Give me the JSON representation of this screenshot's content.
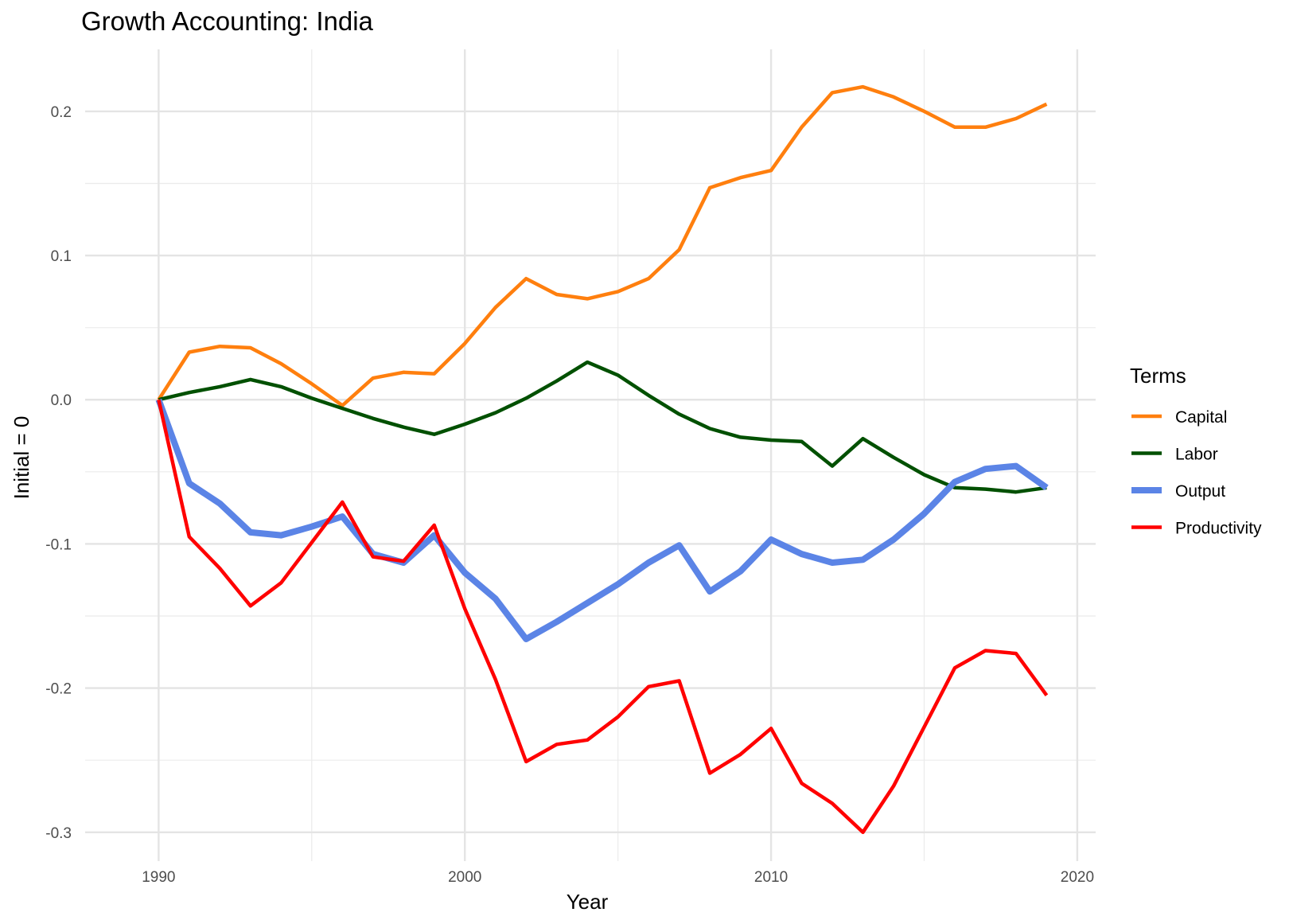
{
  "chart_data": {
    "type": "line",
    "title": "Growth Accounting: India",
    "xlabel": "Year",
    "ylabel": "Initial = 0",
    "xlim": [
      1987.6,
      2020.6
    ],
    "ylim": [
      -0.32,
      0.243
    ],
    "x_ticks": [
      1990,
      2000,
      2010,
      2020
    ],
    "x_tick_labels": [
      "1990",
      "2000",
      "2010",
      "2020"
    ],
    "x_minor_ticks": [
      1995,
      2005,
      2015
    ],
    "y_ticks": [
      -0.3,
      -0.2,
      -0.1,
      0.0,
      0.1,
      0.2
    ],
    "y_tick_labels": [
      "-0.3",
      "-0.2",
      "-0.1",
      "0.0",
      "0.1",
      "0.2"
    ],
    "y_minor_ticks": [
      -0.25,
      -0.15,
      -0.05,
      0.05,
      0.15
    ],
    "grid": true,
    "legend": {
      "title": "Terms",
      "position": "right"
    },
    "x": [
      1990,
      1991,
      1992,
      1993,
      1994,
      1995,
      1996,
      1997,
      1998,
      1999,
      2000,
      2001,
      2002,
      2003,
      2004,
      2005,
      2006,
      2007,
      2008,
      2009,
      2010,
      2011,
      2012,
      2013,
      2014,
      2015,
      2016,
      2017,
      2018,
      2019
    ],
    "series": [
      {
        "name": "Capital",
        "color": "#ff7f0e",
        "width": 4.5,
        "values": [
          0.0,
          0.033,
          0.037,
          0.036,
          0.025,
          0.011,
          -0.004,
          0.015,
          0.019,
          0.018,
          0.039,
          0.064,
          0.084,
          0.073,
          0.07,
          0.075,
          0.084,
          0.104,
          0.147,
          0.154,
          0.159,
          0.189,
          0.213,
          0.217,
          0.21,
          0.2,
          0.189,
          0.189,
          0.195,
          0.205
        ]
      },
      {
        "name": "Labor",
        "color": "#005000",
        "width": 4.5,
        "values": [
          0.0,
          0.005,
          0.009,
          0.014,
          0.009,
          0.001,
          -0.006,
          -0.013,
          -0.019,
          -0.024,
          -0.017,
          -0.009,
          0.001,
          0.013,
          0.026,
          0.017,
          0.003,
          -0.01,
          -0.02,
          -0.026,
          -0.028,
          -0.029,
          -0.046,
          -0.027,
          -0.04,
          -0.052,
          -0.061,
          -0.062,
          -0.064,
          -0.061
        ]
      },
      {
        "name": "Output",
        "color": "#5b84e6",
        "width": 8,
        "values": [
          0.0,
          -0.058,
          -0.072,
          -0.092,
          -0.094,
          -0.088,
          -0.081,
          -0.107,
          -0.113,
          -0.094,
          -0.12,
          -0.138,
          -0.166,
          -0.154,
          -0.141,
          -0.128,
          -0.113,
          -0.101,
          -0.133,
          -0.119,
          -0.097,
          -0.107,
          -0.113,
          -0.111,
          -0.097,
          -0.079,
          -0.057,
          -0.048,
          -0.046,
          -0.061
        ]
      },
      {
        "name": "Productivity",
        "color": "#ff0000",
        "width": 4.5,
        "values": [
          0.0,
          -0.095,
          -0.117,
          -0.143,
          -0.127,
          -0.099,
          -0.071,
          -0.109,
          -0.112,
          -0.087,
          -0.145,
          -0.194,
          -0.251,
          -0.239,
          -0.236,
          -0.22,
          -0.199,
          -0.195,
          -0.259,
          -0.246,
          -0.228,
          -0.266,
          -0.28,
          -0.3,
          -0.268,
          -0.227,
          -0.186,
          -0.174,
          -0.176,
          -0.205
        ]
      }
    ]
  }
}
